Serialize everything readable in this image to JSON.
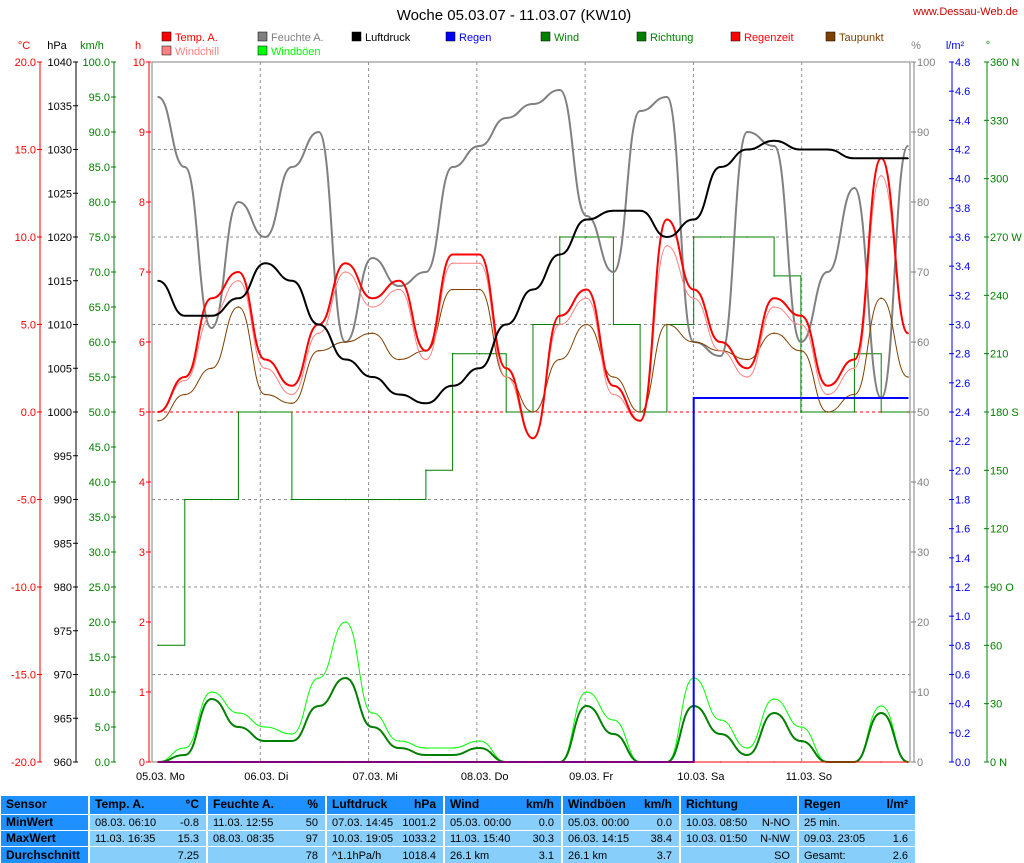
{
  "title": "Woche 05.03.07 - 11.03.07 (KW10)",
  "site": "www.Dessau-Web.de",
  "legend": [
    {
      "label": "Temp. A.",
      "color": "#ff0000",
      "col": 0,
      "row": 0
    },
    {
      "label": "Windchill",
      "color": "#ff8080",
      "col": 0,
      "row": 1
    },
    {
      "label": "Feuchte A.",
      "color": "#808080",
      "col": 1,
      "row": 0
    },
    {
      "label": "Windböen",
      "color": "#00ff00",
      "col": 1,
      "row": 1
    },
    {
      "label": "Luftdruck",
      "color": "#000000",
      "col": 2,
      "row": 0
    },
    {
      "label": "Regen",
      "color": "#0000ff",
      "col": 3,
      "row": 0
    },
    {
      "label": "Wind",
      "color": "#008000",
      "col": 4,
      "row": 0
    },
    {
      "label": "Richtung",
      "color": "#008000",
      "col": 5,
      "row": 0
    },
    {
      "label": "Regenzeit",
      "color": "#ff0000",
      "col": 6,
      "row": 0
    },
    {
      "label": "Taupunkt",
      "color": "#804000",
      "col": 7,
      "row": 0
    }
  ],
  "axes": {
    "temp": {
      "unit": "°C",
      "color": "#ff0000",
      "ticks": [
        "20.0",
        "15.0",
        "10.0",
        "5.0",
        "0.0",
        "-5.0",
        "-10.0",
        "-15.0",
        "-20.0"
      ]
    },
    "pressure": {
      "unit": "hPa",
      "color": "#000000",
      "ticks": [
        "1040",
        "1035",
        "1030",
        "1025",
        "1020",
        "1015",
        "1010",
        "1005",
        "1000",
        "995",
        "990",
        "985",
        "980",
        "975",
        "970",
        "965",
        "960"
      ]
    },
    "wind": {
      "unit": "km/h",
      "color": "#008000",
      "ticks": [
        "100.0",
        "95.0",
        "90.0",
        "85.0",
        "80.0",
        "75.0",
        "70.0",
        "65.0",
        "60.0",
        "55.0",
        "50.0",
        "45.0",
        "40.0",
        "35.0",
        "30.0",
        "25.0",
        "20.0",
        "15.0",
        "10.0",
        "5.0",
        "0.0"
      ]
    },
    "hours": {
      "unit": "h",
      "color": "#ff0000",
      "ticks": [
        "10",
        "9",
        "8",
        "7",
        "6",
        "5",
        "4",
        "3",
        "2",
        "1",
        "0"
      ]
    },
    "humidity": {
      "unit": "%",
      "color": "#808080",
      "ticks": [
        "100",
        "90",
        "80",
        "70",
        "60",
        "50",
        "40",
        "30",
        "20",
        "10",
        "0"
      ]
    },
    "rain": {
      "unit": "l/m²",
      "color": "#0000ff",
      "ticks": [
        "4.8",
        "4.6",
        "4.4",
        "4.2",
        "4.0",
        "3.8",
        "3.6",
        "3.4",
        "3.2",
        "3.0",
        "2.8",
        "2.6",
        "2.4",
        "2.2",
        "2.0",
        "1.8",
        "1.6",
        "1.4",
        "1.2",
        "1.0",
        "0.8",
        "0.6",
        "0.4",
        "0.2",
        "0.0"
      ]
    },
    "direction": {
      "unit": "°",
      "color": "#008000",
      "ticks": [
        "360 N",
        "330",
        "300",
        "270 W",
        "240",
        "210",
        "180 S",
        "150",
        "120",
        "90 O",
        "60",
        "30",
        "0 N"
      ]
    }
  },
  "days": [
    "05.03. Mo",
    "06.03. Di",
    "07.03. Mi",
    "08.03. Do",
    "09.03. Fr",
    "10.03. Sa",
    "11.03. So"
  ],
  "chart_data": {
    "type": "line",
    "x_start": "05.03.07 00:00",
    "x_end": "11.03.07 24:00",
    "x": [
      0,
      6,
      12,
      18,
      24,
      30,
      36,
      42,
      48,
      54,
      60,
      66,
      72,
      78,
      84,
      90,
      96,
      102,
      108,
      114,
      120,
      126,
      132,
      138,
      144,
      150,
      156,
      162,
      168
    ],
    "series": [
      {
        "name": "Temp. A.",
        "axis": "temp",
        "color": "#ff0000",
        "values": [
          0.0,
          2.0,
          6.5,
          8.0,
          3.0,
          1.5,
          5.0,
          8.5,
          6.5,
          7.5,
          3.5,
          9.0,
          9.0,
          2.5,
          -1.5,
          5.5,
          7.0,
          1.5,
          -0.5,
          11.0,
          7.0,
          4.0,
          2.5,
          6.5,
          5.5,
          1.5,
          3.0,
          14.5,
          4.5
        ]
      },
      {
        "name": "Windchill",
        "axis": "temp",
        "color": "#ff8080",
        "values": [
          0.0,
          1.8,
          5.5,
          7.5,
          2.5,
          1.0,
          4.5,
          8.0,
          6.0,
          7.0,
          3.0,
          8.5,
          8.5,
          2.0,
          -1.5,
          5.0,
          6.5,
          1.0,
          -0.5,
          9.5,
          6.5,
          3.5,
          2.0,
          6.0,
          5.0,
          1.0,
          2.5,
          13.5,
          4.5
        ]
      },
      {
        "name": "Taupunkt",
        "axis": "temp",
        "color": "#804000",
        "values": [
          -0.5,
          1.0,
          2.5,
          6.0,
          1.0,
          0.5,
          3.5,
          4.0,
          4.5,
          3.0,
          3.5,
          7.0,
          7.0,
          2.0,
          0.0,
          3.0,
          5.0,
          2.0,
          0.0,
          5.0,
          4.0,
          3.5,
          3.0,
          4.5,
          3.5,
          0.0,
          1.0,
          6.5,
          2.0
        ]
      },
      {
        "name": "Feuchte A.",
        "axis": "humidity",
        "color": "#808080",
        "values": [
          95,
          85,
          62,
          80,
          75,
          85,
          90,
          60,
          72,
          68,
          70,
          85,
          88,
          92,
          94,
          96,
          78,
          70,
          93,
          95,
          60,
          58,
          90,
          88,
          60,
          70,
          82,
          52,
          88
        ]
      },
      {
        "name": "Luftdruck",
        "axis": "pressure",
        "color": "#000000",
        "values": [
          1015,
          1011,
          1011,
          1013,
          1017,
          1015,
          1010,
          1006,
          1004,
          1002,
          1001,
          1003,
          1005,
          1010,
          1014,
          1018,
          1022,
          1023,
          1023,
          1020,
          1022,
          1028,
          1030,
          1031,
          1030,
          1030,
          1029,
          1029,
          1029
        ]
      },
      {
        "name": "Wind",
        "axis": "wind",
        "color": "#008000",
        "values": [
          0,
          1,
          9,
          5,
          3,
          3,
          8,
          12,
          5,
          2,
          1,
          1,
          2,
          0,
          0,
          0,
          8,
          4,
          0,
          0,
          8,
          4,
          1,
          7,
          3,
          0,
          0,
          7,
          0
        ]
      },
      {
        "name": "Windböen",
        "axis": "wind",
        "color": "#00ff00",
        "values": [
          0,
          2,
          10,
          7,
          5,
          4,
          12,
          20,
          7,
          3,
          2,
          2,
          3,
          0,
          0,
          0,
          10,
          6,
          0,
          0,
          12,
          6,
          2,
          9,
          5,
          0,
          0,
          8,
          0
        ]
      },
      {
        "name": "Richtung",
        "axis": "direction",
        "color": "#008000",
        "values": [
          60,
          135,
          135,
          180,
          180,
          135,
          135,
          135,
          135,
          135,
          150,
          210,
          210,
          180,
          225,
          270,
          270,
          225,
          180,
          225,
          270,
          270,
          270,
          250,
          180,
          180,
          210,
          180,
          180
        ]
      },
      {
        "name": "Regen",
        "axis": "rain",
        "color": "#0000ff",
        "values": [
          0,
          0,
          0,
          0,
          0,
          0,
          0,
          0,
          0,
          0,
          0,
          0,
          0,
          0,
          0,
          0,
          0,
          0,
          0,
          0,
          2.6,
          2.6,
          2.6,
          2.6,
          2.6,
          2.6,
          2.6,
          2.6,
          2.6
        ]
      },
      {
        "name": "Regenzeit",
        "axis": "hours",
        "color": "#ff0000",
        "values": [
          0,
          0,
          0,
          0,
          0,
          0,
          0,
          0,
          0,
          0,
          0,
          0,
          0,
          0,
          0,
          0,
          0,
          0,
          0,
          0,
          0,
          0,
          0,
          0,
          0,
          0,
          0,
          0,
          0
        ]
      }
    ],
    "grid": true
  },
  "table": {
    "row_labels": {
      "sensor": "Sensor",
      "min": "MinWert",
      "max": "MaxWert",
      "avg": "Durchschnitt"
    },
    "columns": [
      {
        "title": "Temp. A.",
        "unit": "°C",
        "min": [
          "08.03.  06:10",
          "-0.8"
        ],
        "max": [
          "11.03.  16:35",
          "15.3"
        ],
        "avg": [
          "",
          "7.25"
        ]
      },
      {
        "title": "Feuchte A.",
        "unit": "%",
        "min": [
          "11.03.  12:55",
          "50"
        ],
        "max": [
          "08.03.  08:35",
          "97"
        ],
        "avg": [
          "",
          "78"
        ]
      },
      {
        "title": "Luftdruck",
        "unit": "hPa",
        "min": [
          "07.03.  14:45",
          "1001.2"
        ],
        "max": [
          "10.03.  19:05",
          "1033.2"
        ],
        "avg": [
          "^1.1hPa/h",
          "1018.4"
        ]
      },
      {
        "title": "Wind",
        "unit": "km/h",
        "min": [
          "05.03.  00:00",
          "0.0"
        ],
        "max": [
          "11.03.  15:40",
          "30.3"
        ],
        "avg": [
          "26.1 km",
          "3.1"
        ]
      },
      {
        "title": "Windböen",
        "unit": "km/h",
        "min": [
          "05.03.  00:00",
          "0.0"
        ],
        "max": [
          "06.03.  14:15",
          "38.4"
        ],
        "avg": [
          "26.1 km",
          "3.7"
        ]
      },
      {
        "title": "Richtung",
        "unit": "",
        "min": [
          "10.03.  08:50",
          "N-NO"
        ],
        "max": [
          "10.03.  01:50",
          "N-NW"
        ],
        "avg": [
          "",
          "SO"
        ]
      },
      {
        "title": "Regen",
        "unit": "l/m²",
        "min": [
          "25 min.",
          ""
        ],
        "max": [
          "09.03.  23:05",
          "1.6"
        ],
        "avg": [
          "Gesamt:",
          "2.6"
        ]
      }
    ]
  }
}
